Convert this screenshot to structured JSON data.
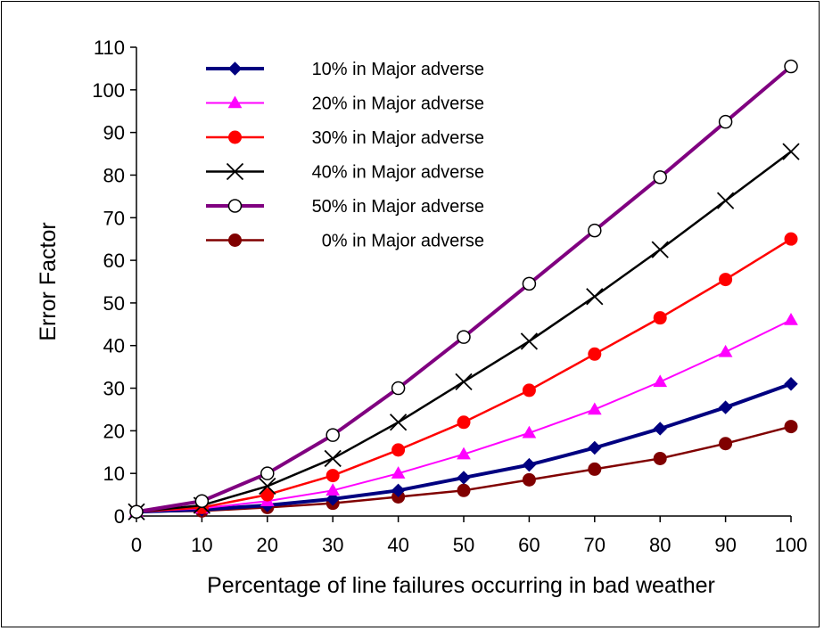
{
  "chart_data": {
    "type": "line",
    "title": "",
    "xlabel": "Percentage of line failures occurring in bad weather",
    "ylabel": "Error Factor",
    "x": [
      0,
      10,
      20,
      30,
      40,
      50,
      60,
      70,
      80,
      90,
      100
    ],
    "xlim": [
      0,
      100
    ],
    "ylim": [
      0,
      110
    ],
    "xticks": [
      0,
      10,
      20,
      30,
      40,
      50,
      60,
      70,
      80,
      90,
      100
    ],
    "yticks": [
      0,
      10,
      20,
      30,
      40,
      50,
      60,
      70,
      80,
      90,
      100,
      110
    ],
    "grid": false,
    "legend_position": "top-left",
    "series": [
      {
        "name": "10% in Major adverse",
        "color": "#000080",
        "marker": "diamond",
        "line_width": 4,
        "values": [
          1,
          1.5,
          2.5,
          4,
          6,
          9,
          12,
          16,
          20.5,
          25.5,
          31
        ]
      },
      {
        "name": "20% in Major adverse",
        "color": "#ff00ff",
        "marker": "triangle",
        "line_width": 2,
        "values": [
          1,
          1.8,
          3.5,
          6,
          10,
          14.5,
          19.5,
          25,
          31.5,
          38.5,
          46
        ]
      },
      {
        "name": "30% in Major adverse",
        "color": "#ff0000",
        "marker": "circle-filled",
        "line_width": 2.5,
        "values": [
          1,
          2,
          5,
          9.5,
          15.5,
          22,
          29.5,
          38,
          46.5,
          55.5,
          65
        ]
      },
      {
        "name": "40% in Major adverse",
        "color": "#000000",
        "marker": "x",
        "line_width": 2.5,
        "values": [
          1,
          2.5,
          7,
          13.5,
          22,
          31.5,
          41,
          51.5,
          62.5,
          74,
          85.5
        ]
      },
      {
        "name": "50% in Major adverse",
        "color": "#800080",
        "marker": "circle-open",
        "line_width": 4,
        "values": [
          1,
          3.5,
          10,
          19,
          30,
          42,
          54.5,
          67,
          79.5,
          92.5,
          105.5
        ]
      },
      {
        "name": "0% in Major adverse",
        "color": "#800000",
        "marker": "circle-filled",
        "line_width": 2.5,
        "values": [
          1,
          1.2,
          2,
          3,
          4.5,
          6,
          8.5,
          11,
          13.5,
          17,
          21
        ]
      }
    ]
  }
}
